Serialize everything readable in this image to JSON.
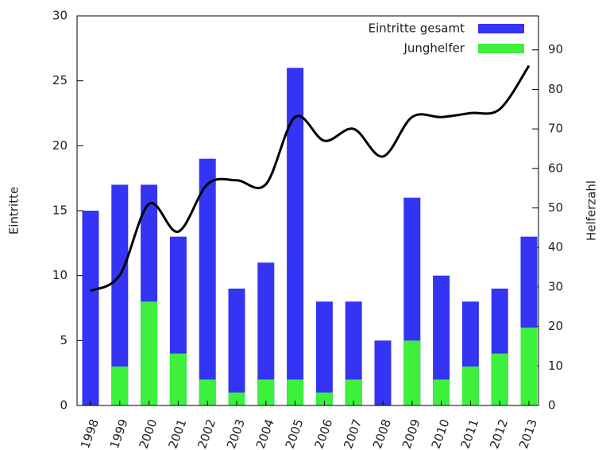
{
  "chart_data": {
    "type": "bar",
    "y_label": "Eintritte",
    "y2_label": "Helferzahl",
    "categories": [
      "1998",
      "1999",
      "2000",
      "2001",
      "2002",
      "2003",
      "2004",
      "2005",
      "2006",
      "2007",
      "2008",
      "2009",
      "2010",
      "2011",
      "2012",
      "2013"
    ],
    "series": [
      {
        "name": "Eintritte gesamt",
        "color": "#3434f4",
        "values": [
          15,
          17,
          17,
          13,
          19,
          9,
          11,
          26,
          8,
          8,
          5,
          16,
          10,
          8,
          9,
          13
        ]
      },
      {
        "name": "Junghelfer",
        "color": "#3cf03c",
        "values": [
          0,
          3,
          8,
          4,
          2,
          1,
          2,
          2,
          1,
          2,
          0,
          5,
          2,
          3,
          4,
          6
        ]
      },
      {
        "type": "line",
        "axis": "y2",
        "color": "#000000",
        "values": [
          29,
          33,
          51,
          44,
          56,
          57,
          56,
          73,
          67,
          70,
          63,
          73,
          73,
          74,
          75,
          86
        ]
      }
    ],
    "ylim": [
      0,
      30
    ],
    "yticks": [
      0,
      5,
      10,
      15,
      20,
      25,
      30
    ],
    "y2lim": [
      0,
      98.6
    ],
    "y2ticks": [
      0,
      10,
      20,
      30,
      40,
      50,
      60,
      70,
      80,
      90
    ],
    "legend": "top-right"
  }
}
